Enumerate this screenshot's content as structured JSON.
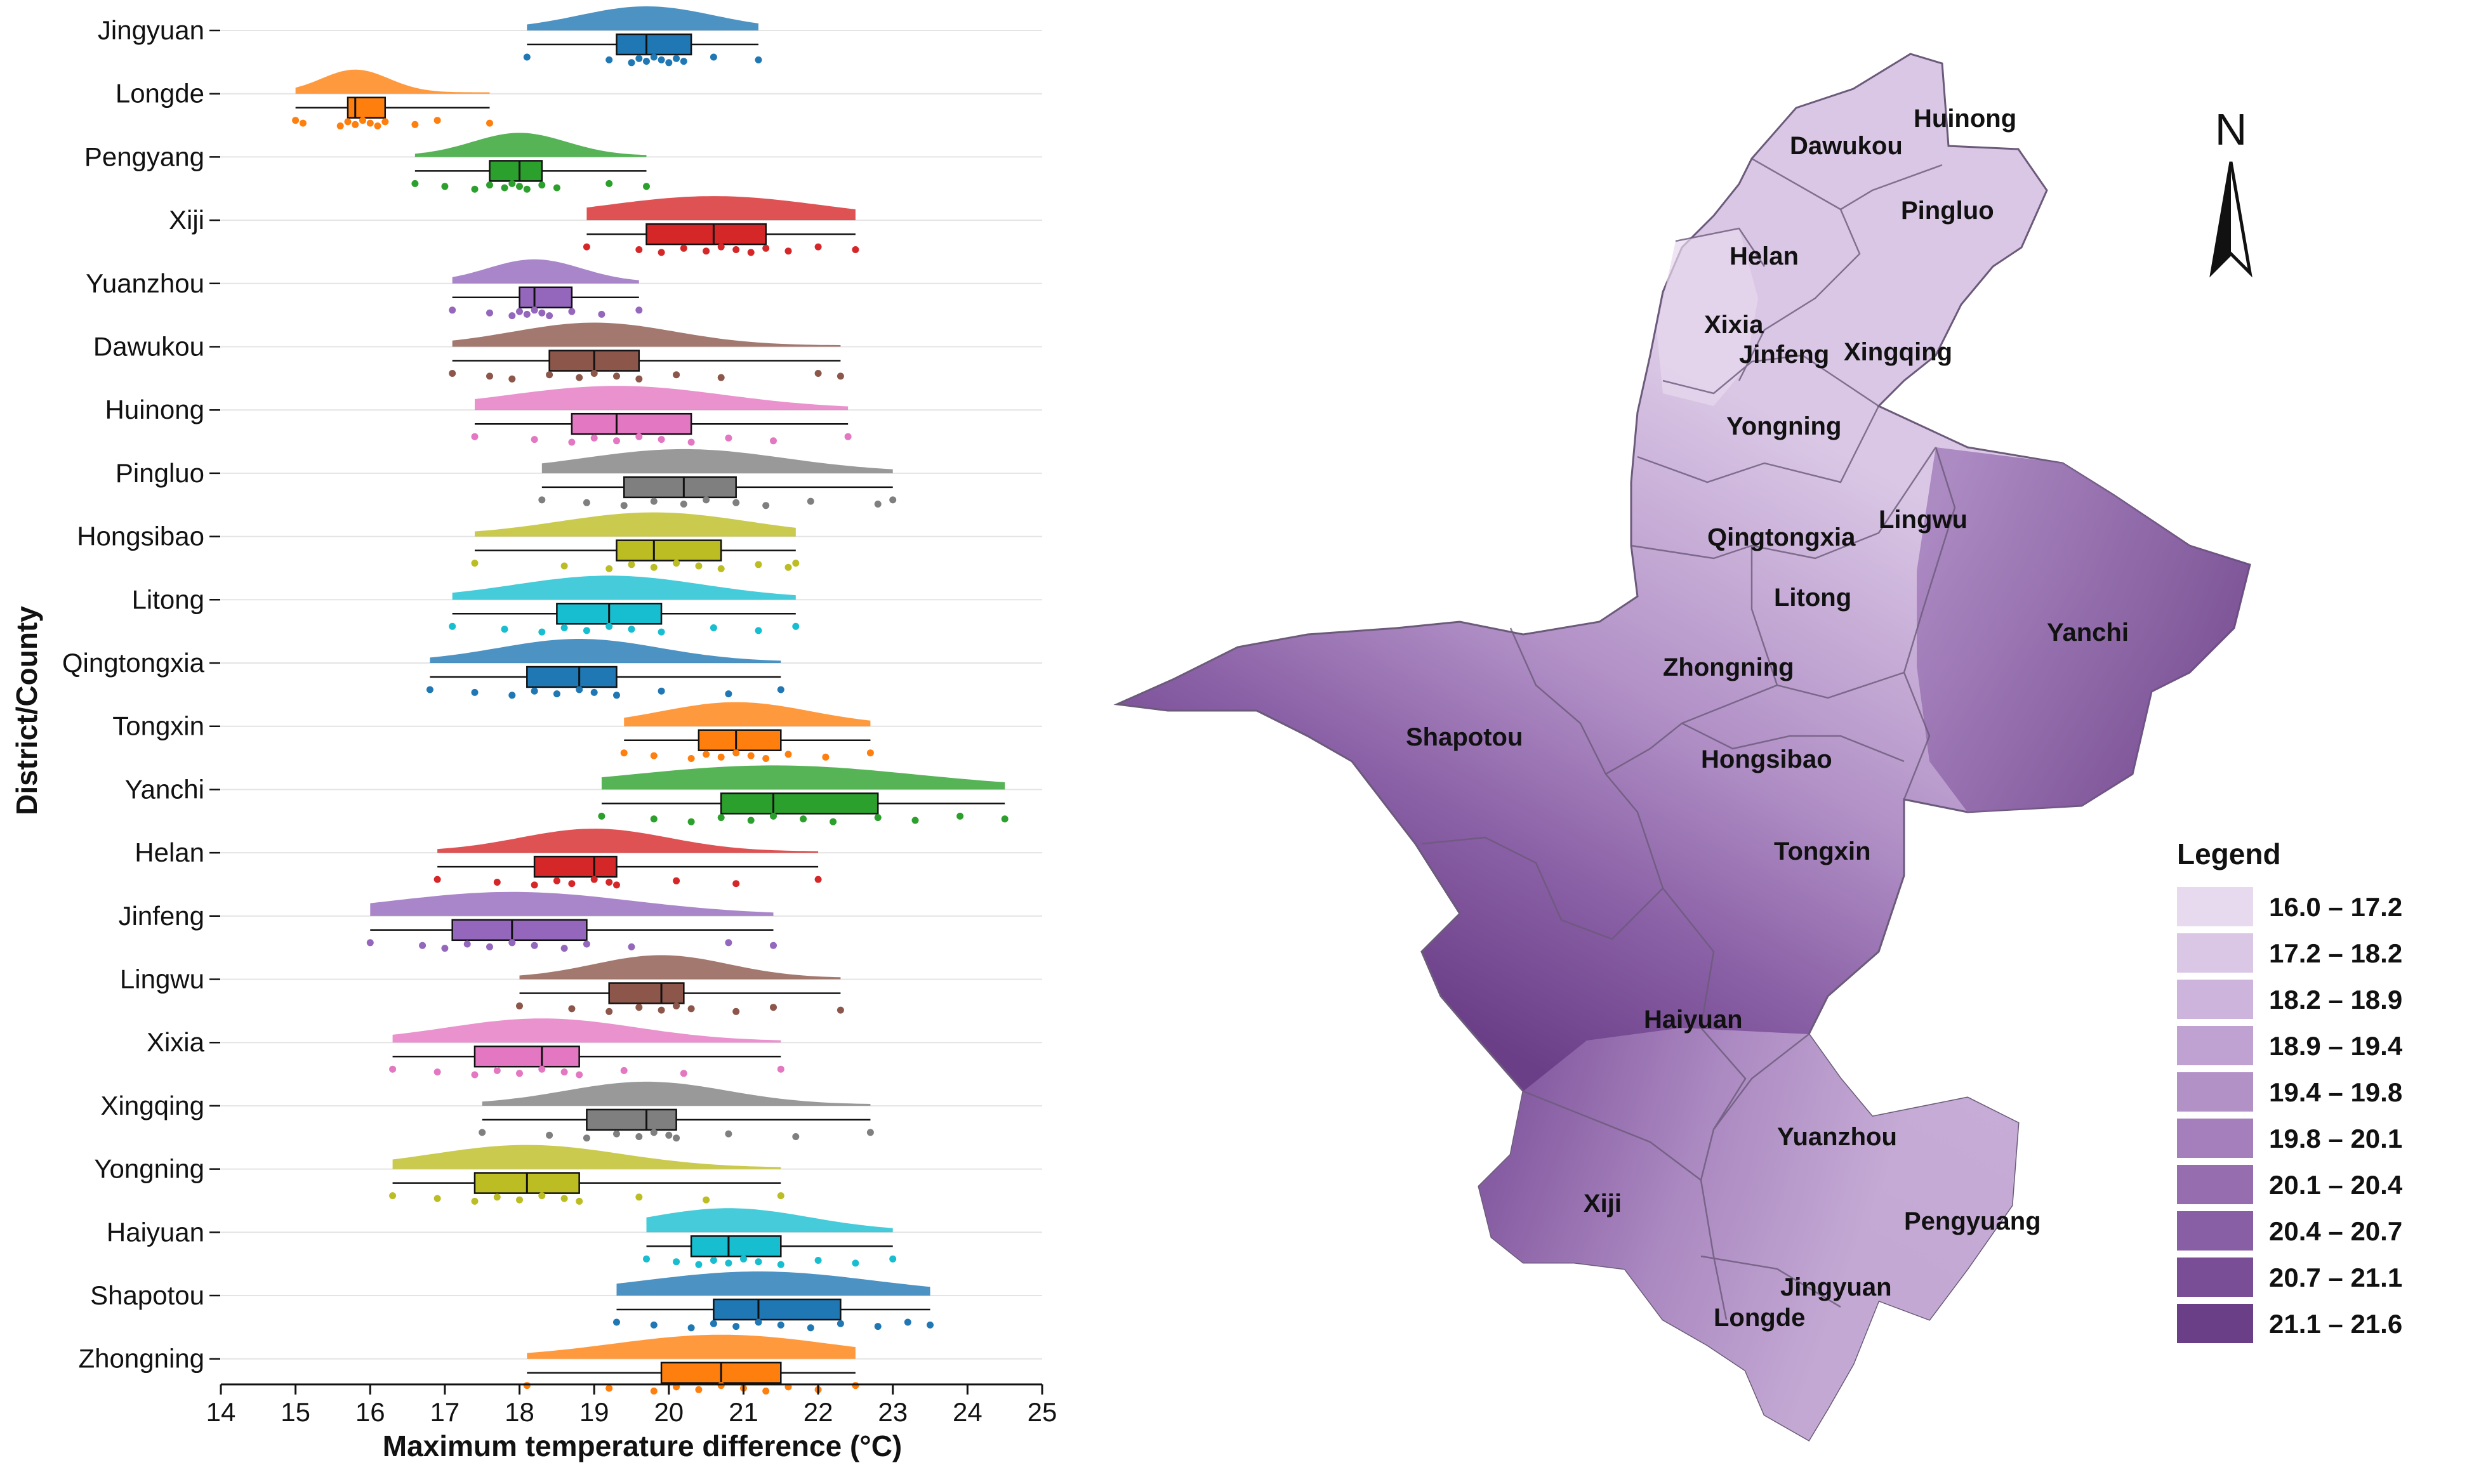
{
  "chart_data": [
    {
      "type": "raincloud",
      "xlabel": "Maximum temperature difference (°C)",
      "ylabel": "District/County",
      "xlim": [
        14,
        25
      ],
      "xticks": [
        14,
        15,
        16,
        17,
        18,
        19,
        20,
        21,
        22,
        23,
        24,
        25
      ],
      "grid": "horizontal",
      "series": [
        {
          "name": "Jingyuan",
          "color": "#1f77b4",
          "min": 18.1,
          "q1": 19.3,
          "median": 19.7,
          "q3": 20.3,
          "max": 21.2,
          "points": [
            18.1,
            19.2,
            19.5,
            19.6,
            19.7,
            19.8,
            19.9,
            20.0,
            20.1,
            20.2,
            20.6,
            21.2
          ]
        },
        {
          "name": "Longde",
          "color": "#ff7f0e",
          "min": 15.0,
          "q1": 15.7,
          "median": 15.8,
          "q3": 16.2,
          "max": 17.6,
          "points": [
            15.0,
            15.1,
            15.6,
            15.7,
            15.8,
            15.9,
            16.0,
            16.1,
            16.2,
            16.6,
            16.9,
            17.6
          ]
        },
        {
          "name": "Pengyang",
          "color": "#2ca02c",
          "min": 16.6,
          "q1": 17.6,
          "median": 18.0,
          "q3": 18.3,
          "max": 19.7,
          "points": [
            16.6,
            17.0,
            17.4,
            17.6,
            17.8,
            17.9,
            18.0,
            18.1,
            18.3,
            18.5,
            19.2,
            19.7
          ]
        },
        {
          "name": "Xiji",
          "color": "#d62728",
          "min": 18.9,
          "q1": 19.7,
          "median": 20.6,
          "q3": 21.3,
          "max": 22.5,
          "points": [
            18.9,
            19.6,
            19.9,
            20.2,
            20.5,
            20.7,
            20.9,
            21.1,
            21.3,
            21.6,
            22.0,
            22.5
          ]
        },
        {
          "name": "Yuanzhou",
          "color": "#9467bd",
          "min": 17.1,
          "q1": 18.0,
          "median": 18.2,
          "q3": 18.7,
          "max": 19.6,
          "points": [
            17.1,
            17.6,
            17.9,
            18.0,
            18.1,
            18.2,
            18.3,
            18.4,
            18.7,
            19.1,
            19.6
          ]
        },
        {
          "name": "Dawukou",
          "color": "#8c564b",
          "min": 17.1,
          "q1": 18.4,
          "median": 19.0,
          "q3": 19.6,
          "max": 22.3,
          "points": [
            17.1,
            17.6,
            17.9,
            18.4,
            18.8,
            19.0,
            19.3,
            19.6,
            20.1,
            20.7,
            22.0,
            22.3
          ]
        },
        {
          "name": "Huinong",
          "color": "#e377c2",
          "min": 17.4,
          "q1": 18.7,
          "median": 19.3,
          "q3": 20.3,
          "max": 22.4,
          "points": [
            17.4,
            18.2,
            18.7,
            19.0,
            19.3,
            19.6,
            19.9,
            20.3,
            20.8,
            21.4,
            22.4
          ]
        },
        {
          "name": "Pingluo",
          "color": "#7f7f7f",
          "min": 18.3,
          "q1": 19.4,
          "median": 20.2,
          "q3": 20.9,
          "max": 23.0,
          "points": [
            18.3,
            18.9,
            19.4,
            19.8,
            20.2,
            20.5,
            20.9,
            21.3,
            21.9,
            22.8,
            23.0
          ]
        },
        {
          "name": "Hongsibao",
          "color": "#bcbd22",
          "min": 17.4,
          "q1": 19.3,
          "median": 19.8,
          "q3": 20.7,
          "max": 21.7,
          "points": [
            17.4,
            18.6,
            19.2,
            19.5,
            19.8,
            20.1,
            20.4,
            20.7,
            21.2,
            21.6,
            21.7
          ]
        },
        {
          "name": "Litong",
          "color": "#17becf",
          "min": 17.1,
          "q1": 18.5,
          "median": 19.2,
          "q3": 19.9,
          "max": 21.7,
          "points": [
            17.1,
            17.8,
            18.3,
            18.6,
            18.9,
            19.2,
            19.5,
            19.9,
            20.6,
            21.2,
            21.7
          ]
        },
        {
          "name": "Qingtongxia",
          "color": "#1f77b4",
          "min": 16.8,
          "q1": 18.1,
          "median": 18.8,
          "q3": 19.3,
          "max": 21.5,
          "points": [
            16.8,
            17.4,
            17.9,
            18.2,
            18.5,
            18.8,
            19.0,
            19.3,
            19.9,
            20.8,
            21.5
          ]
        },
        {
          "name": "Tongxin",
          "color": "#ff7f0e",
          "min": 19.4,
          "q1": 20.4,
          "median": 20.9,
          "q3": 21.5,
          "max": 22.7,
          "points": [
            19.4,
            19.8,
            20.3,
            20.5,
            20.7,
            20.9,
            21.1,
            21.3,
            21.6,
            22.1,
            22.7
          ]
        },
        {
          "name": "Yanchi",
          "color": "#2ca02c",
          "min": 19.1,
          "q1": 20.7,
          "median": 21.4,
          "q3": 22.8,
          "max": 24.5,
          "points": [
            19.1,
            19.8,
            20.3,
            20.7,
            21.1,
            21.4,
            21.8,
            22.2,
            22.8,
            23.3,
            23.9,
            24.5
          ]
        },
        {
          "name": "Helan",
          "color": "#d62728",
          "min": 16.9,
          "q1": 18.2,
          "median": 19.0,
          "q3": 19.3,
          "max": 22.0,
          "points": [
            16.9,
            17.7,
            18.2,
            18.5,
            18.7,
            19.0,
            19.2,
            19.3,
            20.1,
            20.9,
            22.0
          ]
        },
        {
          "name": "Jinfeng",
          "color": "#9467bd",
          "min": 16.0,
          "q1": 17.1,
          "median": 17.9,
          "q3": 18.9,
          "max": 21.4,
          "points": [
            16.0,
            16.7,
            17.0,
            17.3,
            17.6,
            17.9,
            18.2,
            18.6,
            18.9,
            19.5,
            20.8,
            21.4
          ]
        },
        {
          "name": "Lingwu",
          "color": "#8c564b",
          "min": 18.0,
          "q1": 19.2,
          "median": 19.9,
          "q3": 20.2,
          "max": 22.3,
          "points": [
            18.0,
            18.7,
            19.2,
            19.6,
            19.9,
            20.1,
            20.3,
            20.9,
            21.4,
            22.3
          ]
        },
        {
          "name": "Xixia",
          "color": "#e377c2",
          "min": 16.3,
          "q1": 17.4,
          "median": 18.3,
          "q3": 18.8,
          "max": 21.5,
          "points": [
            16.3,
            16.9,
            17.4,
            17.7,
            18.0,
            18.3,
            18.6,
            18.8,
            19.4,
            20.2,
            21.5
          ]
        },
        {
          "name": "Xingqing",
          "color": "#7f7f7f",
          "min": 17.5,
          "q1": 18.9,
          "median": 19.7,
          "q3": 20.1,
          "max": 22.7,
          "points": [
            17.5,
            18.4,
            18.9,
            19.3,
            19.6,
            19.8,
            20.0,
            20.1,
            20.8,
            21.7,
            22.7
          ]
        },
        {
          "name": "Yongning",
          "color": "#bcbd22",
          "min": 16.3,
          "q1": 17.4,
          "median": 18.1,
          "q3": 18.8,
          "max": 21.5,
          "points": [
            16.3,
            16.9,
            17.4,
            17.7,
            18.0,
            18.3,
            18.6,
            18.8,
            19.6,
            20.5,
            21.5
          ]
        },
        {
          "name": "Haiyuan",
          "color": "#17becf",
          "min": 19.7,
          "q1": 20.3,
          "median": 20.8,
          "q3": 21.5,
          "max": 23.0,
          "points": [
            19.7,
            20.1,
            20.4,
            20.6,
            20.8,
            21.0,
            21.2,
            21.5,
            22.0,
            22.5,
            23.0
          ]
        },
        {
          "name": "Shapotou",
          "color": "#1f77b4",
          "min": 19.3,
          "q1": 20.6,
          "median": 21.2,
          "q3": 22.3,
          "max": 23.5,
          "points": [
            19.3,
            19.8,
            20.3,
            20.6,
            20.9,
            21.2,
            21.5,
            21.9,
            22.3,
            22.8,
            23.2,
            23.5
          ]
        },
        {
          "name": "Zhongning",
          "color": "#ff7f0e",
          "min": 18.1,
          "q1": 19.9,
          "median": 20.7,
          "q3": 21.5,
          "max": 22.5,
          "points": [
            18.1,
            19.2,
            19.8,
            20.1,
            20.4,
            20.7,
            21.0,
            21.3,
            21.6,
            22.0,
            22.5
          ]
        }
      ]
    },
    {
      "type": "choropleth_map",
      "north_arrow": "N",
      "legend_title": "Legend",
      "legend_placement": "bottom-right",
      "classes": [
        {
          "label": "16.0 – 17.2",
          "color": "#e7d9ee"
        },
        {
          "label": "17.2 – 18.2",
          "color": "#dac7e5"
        },
        {
          "label": "18.2 – 18.9",
          "color": "#cdb4dc"
        },
        {
          "label": "18.9 – 19.4",
          "color": "#bfa2d1"
        },
        {
          "label": "19.4 – 19.8",
          "color": "#b291c7"
        },
        {
          "label": "19.8 – 20.1",
          "color": "#a47fbc"
        },
        {
          "label": "20.1 – 20.4",
          "color": "#966eb0"
        },
        {
          "label": "20.4 – 20.7",
          "color": "#885ea4"
        },
        {
          "label": "20.7 – 21.1",
          "color": "#7a4e96"
        },
        {
          "label": "21.1 – 21.6",
          "color": "#6b3f88"
        }
      ],
      "districts": [
        "Huinong",
        "Dawukou",
        "Pingluo",
        "Helan",
        "Xixia",
        "Jinfeng",
        "Xingqing",
        "Yongning",
        "Qingtongxia",
        "Lingwu",
        "Litong",
        "Yanchi",
        "Zhongning",
        "Shapotou",
        "Hongsibao",
        "Tongxin",
        "Haiyuan",
        "Yuanzhou",
        "Pengyuang",
        "Xiji",
        "Jingyuan",
        "Longde"
      ]
    }
  ]
}
